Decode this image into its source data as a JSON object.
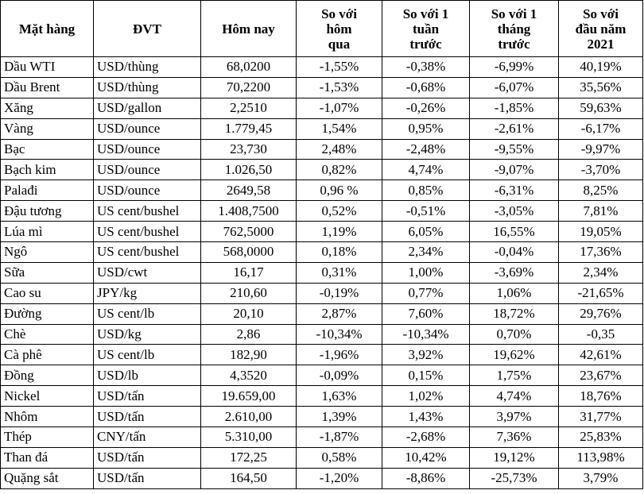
{
  "headers": [
    "Mặt hàng",
    "ĐVT",
    "Hôm nay",
    "So với\nhôm\nqua",
    "So với 1\ntuần\ntrước",
    "So với 1\ntháng\ntrước",
    "So với\nđầu năm\n2021"
  ],
  "rows": [
    [
      "Dầu WTI",
      "USD/thùng",
      "68,0200",
      "-1,55%",
      "-0,38%",
      "-6,99%",
      "40,19%"
    ],
    [
      "Dầu Brent",
      "USD/thùng",
      "70,2200",
      "-1,53%",
      "-0,68%",
      "-6,07%",
      "35,56%"
    ],
    [
      "Xăng",
      "USD/gallon",
      "2,2510",
      "-1,07%",
      "-0,26%",
      "-1,85%",
      "59,63%"
    ],
    [
      "Vàng",
      "USD/ounce",
      "1.779,45",
      "1,54%",
      "0,95%",
      "-2,61%",
      "-6,17%"
    ],
    [
      "Bạc",
      "USD/ounce",
      "23,730",
      "2,48%",
      "-2,48%",
      "-9,55%",
      "-9,97%"
    ],
    [
      "Bạch kim",
      "USD/ounce",
      "1.026,50",
      "0,82%",
      "4,74%",
      "-9,07%",
      "-3,70%"
    ],
    [
      "Palađi",
      "USD/ounce",
      "2649,58",
      "0,96 %",
      "0,85%",
      "-6,31%",
      "8,25%"
    ],
    [
      "Đậu tương",
      "US cent/bushel",
      "1.408,7500",
      "0,52%",
      "-0,51%",
      "-3,05%",
      "7,81%"
    ],
    [
      "Lúa mì",
      "US cent/bushel",
      "762,5000",
      "1,19%",
      "6,05%",
      "16,55%",
      "19,05%"
    ],
    [
      "Ngô",
      "US cent/bushel",
      "568,0000",
      "0,18%",
      "2,34%",
      "-0,04%",
      "17,36%"
    ],
    [
      "Sữa",
      "USD/cwt",
      "16,17",
      "0,31%",
      "1,00%",
      "-3,69%",
      "2,34%"
    ],
    [
      "Cao su",
      "JPY/kg",
      "210,60",
      "-0,19%",
      "0,77%",
      "1,06%",
      "-21,65%"
    ],
    [
      "Đường",
      "US cent/lb",
      "20,10",
      "2,87%",
      "7,60%",
      "18,72%",
      "29,76%"
    ],
    [
      "Chè",
      "USD/kg",
      "2,86",
      "-10,34%",
      "-10,34%",
      "0,70%",
      "-0,35"
    ],
    [
      "Cà phê",
      "US cent/lb",
      "182,90",
      "-1,96%",
      "3,92%",
      "19,62%",
      "42,61%"
    ],
    [
      "Đồng",
      "USD/lb",
      "4,3520",
      "-0,09%",
      "0,15%",
      "1,75%",
      "23,67%"
    ],
    [
      "Nickel",
      "USD/tấn",
      "19.659,00",
      "1,63%",
      "1,02%",
      "4,74%",
      "18,76%"
    ],
    [
      "Nhôm",
      "USD/tấn",
      "2.610,00",
      "1,39%",
      "1,43%",
      "3,97%",
      "31,77%"
    ],
    [
      "Thép",
      "CNY/tấn",
      "5.310,00",
      "-1,87%",
      "-2,68%",
      "7,36%",
      "25,83%"
    ],
    [
      "Than đá",
      "USD/tấn",
      "172,25",
      "0,58%",
      "10,42%",
      "19,12%",
      "113,98%"
    ],
    [
      "Quặng sắt",
      "USD/tấn",
      "164,50",
      "-1,20%",
      "-8,86%",
      "-25,73%",
      "3,79%"
    ]
  ]
}
